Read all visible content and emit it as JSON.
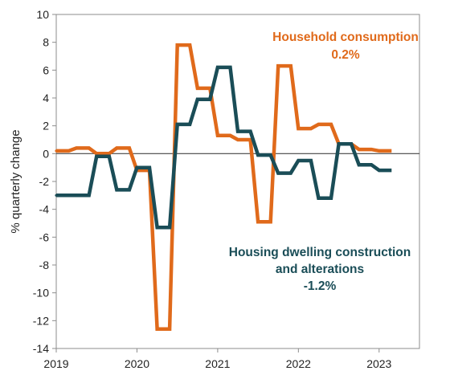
{
  "chart_data": {
    "type": "line",
    "ylabel": "% quarterly change",
    "ylim": [
      -14,
      10
    ],
    "yticks": [
      10,
      8,
      6,
      4,
      2,
      0,
      -2,
      -4,
      -6,
      -8,
      -10,
      -12,
      -14
    ],
    "xlim": [
      2019.0,
      2023.5
    ],
    "xticks": [
      2019,
      2020,
      2021,
      2022,
      2023
    ],
    "grid": false,
    "series": [
      {
        "name": "Household consumption",
        "label_lines": [
          "Household consumption",
          "0.2%"
        ],
        "color": "#E06A1B",
        "points": [
          [
            2019.0,
            0.2
          ],
          [
            2019.25,
            0.4
          ],
          [
            2019.5,
            0.0
          ],
          [
            2019.75,
            0.4
          ],
          [
            2020.0,
            -1.2
          ],
          [
            2020.25,
            -12.6
          ],
          [
            2020.5,
            7.8
          ],
          [
            2020.75,
            4.7
          ],
          [
            2021.0,
            1.3
          ],
          [
            2021.25,
            1.0
          ],
          [
            2021.5,
            -4.9
          ],
          [
            2021.75,
            6.3
          ],
          [
            2022.0,
            1.8
          ],
          [
            2022.25,
            2.1
          ],
          [
            2022.5,
            0.7
          ],
          [
            2022.75,
            0.3
          ],
          [
            2023.0,
            0.2
          ]
        ]
      },
      {
        "name": "Housing dwelling construction and alterations",
        "label_lines": [
          "Housing dwelling construction",
          "and alterations",
          "-1.2%"
        ],
        "color": "#1A4D57",
        "points": [
          [
            2019.0,
            -3.0
          ],
          [
            2019.25,
            -3.0
          ],
          [
            2019.5,
            -0.2
          ],
          [
            2019.75,
            -2.6
          ],
          [
            2020.0,
            -1.0
          ],
          [
            2020.25,
            -5.3
          ],
          [
            2020.5,
            2.1
          ],
          [
            2020.75,
            3.9
          ],
          [
            2021.0,
            6.2
          ],
          [
            2021.25,
            1.6
          ],
          [
            2021.5,
            -0.1
          ],
          [
            2021.75,
            -1.4
          ],
          [
            2022.0,
            -0.5
          ],
          [
            2022.25,
            -3.2
          ],
          [
            2022.5,
            0.7
          ],
          [
            2022.75,
            -0.8
          ],
          [
            2023.0,
            -1.2
          ]
        ]
      }
    ]
  }
}
